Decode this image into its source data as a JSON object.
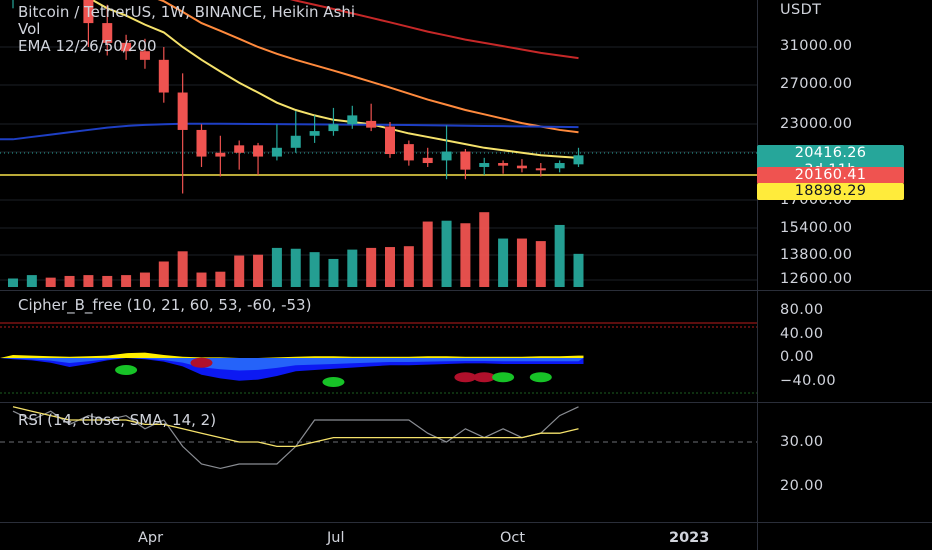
{
  "header": {
    "title": "Bitcoin / TetherUS, 1W, BINANCE, Heikin Ashi",
    "vol_label": "Vol",
    "ema_label": "EMA 12/26/50/200"
  },
  "price_axis": {
    "currency": "USDT",
    "ticks": [
      "31000.00",
      "27000.00",
      "23000.00",
      "17000.00",
      "15400.00",
      "13800.00",
      "12600.00"
    ]
  },
  "price_tags": {
    "last_price": "20416.26",
    "countdown": "3d 11h",
    "level_1": "20160.41",
    "level_2": "18898.29"
  },
  "cipher": {
    "label": "Cipher_B_free (10, 21, 60, 53, -60, -53)",
    "ticks": [
      "80.00",
      "40.00",
      "0.00",
      "−40.00"
    ]
  },
  "rsi": {
    "label": "RSI (14, close, SMA, 14, 2)",
    "ticks": [
      "30.00",
      "20.00"
    ]
  },
  "time_axis": {
    "labels": [
      "Apr",
      "Jul",
      "Oct",
      "2023"
    ]
  },
  "colors": {
    "up": "#26a69a",
    "down": "#ef5350",
    "ema_yellow": "#f5e26b",
    "ema_orange": "#ff8a3d",
    "ema_red": "#c62828",
    "ema_blue": "#1e3fc4",
    "level_line": "#f7e34b",
    "last_tag": "#26a69a",
    "level_1_tag": "#ef5350",
    "level_2_tag": "#ffeb3b"
  },
  "chart_data": {
    "type": "candlestick",
    "title": "Bitcoin / TetherUS, 1W, BINANCE, Heikin Ashi",
    "price_scale": "log",
    "price_range": [
      12000,
      33000
    ],
    "horizontal_level": 20160.41,
    "candles": [
      {
        "o": 37500,
        "h": 40500,
        "l": 36000,
        "c": 39000,
        "d": "up"
      },
      {
        "o": 39500,
        "h": 45000,
        "l": 38500,
        "c": 44000,
        "d": "up"
      },
      {
        "o": 44500,
        "h": 46500,
        "l": 41000,
        "c": 42000,
        "d": "down"
      },
      {
        "o": 42000,
        "h": 43500,
        "l": 37500,
        "c": 38500,
        "d": "down"
      },
      {
        "o": 38500,
        "h": 39500,
        "l": 31000,
        "c": 34000,
        "d": "down"
      },
      {
        "o": 34000,
        "h": 36500,
        "l": 30000,
        "c": 31500,
        "d": "down"
      },
      {
        "o": 31500,
        "h": 32500,
        "l": 29500,
        "c": 30500,
        "d": "down"
      },
      {
        "o": 30500,
        "h": 32000,
        "l": 28500,
        "c": 29500,
        "d": "down"
      },
      {
        "o": 29500,
        "h": 31000,
        "l": 25000,
        "c": 26000,
        "d": "down"
      },
      {
        "o": 26000,
        "h": 28000,
        "l": 17600,
        "c": 22500,
        "d": "down"
      },
      {
        "o": 22500,
        "h": 23000,
        "l": 19500,
        "c": 20300,
        "d": "down"
      },
      {
        "o": 20300,
        "h": 22000,
        "l": 18800,
        "c": 20600,
        "d": "down"
      },
      {
        "o": 20600,
        "h": 21600,
        "l": 19300,
        "c": 21200,
        "d": "down"
      },
      {
        "o": 21200,
        "h": 21400,
        "l": 18900,
        "c": 20300,
        "d": "down"
      },
      {
        "o": 20300,
        "h": 23000,
        "l": 20000,
        "c": 21000,
        "d": "up"
      },
      {
        "o": 21000,
        "h": 24200,
        "l": 20600,
        "c": 22000,
        "d": "up"
      },
      {
        "o": 22000,
        "h": 23800,
        "l": 21400,
        "c": 22400,
        "d": "up"
      },
      {
        "o": 22400,
        "h": 24500,
        "l": 22000,
        "c": 23000,
        "d": "up"
      },
      {
        "o": 23000,
        "h": 24700,
        "l": 22600,
        "c": 23800,
        "d": "up"
      },
      {
        "o": 23300,
        "h": 24900,
        "l": 22400,
        "c": 22700,
        "d": "down"
      },
      {
        "o": 22800,
        "h": 23200,
        "l": 20200,
        "c": 20500,
        "d": "down"
      },
      {
        "o": 21300,
        "h": 21600,
        "l": 19600,
        "c": 20000,
        "d": "down"
      },
      {
        "o": 20200,
        "h": 21000,
        "l": 19500,
        "c": 19800,
        "d": "down"
      },
      {
        "o": 20000,
        "h": 22900,
        "l": 18600,
        "c": 20700,
        "d": "up"
      },
      {
        "o": 20700,
        "h": 20900,
        "l": 18600,
        "c": 19300,
        "d": "down"
      },
      {
        "o": 19500,
        "h": 20200,
        "l": 18900,
        "c": 19800,
        "d": "up"
      },
      {
        "o": 19800,
        "h": 20000,
        "l": 19000,
        "c": 19600,
        "d": "down"
      },
      {
        "o": 19600,
        "h": 20100,
        "l": 19100,
        "c": 19400,
        "d": "down"
      },
      {
        "o": 19400,
        "h": 19800,
        "l": 18800,
        "c": 19400,
        "d": "down"
      },
      {
        "o": 19400,
        "h": 20000,
        "l": 19100,
        "c": 19800,
        "d": "up"
      },
      {
        "o": 19700,
        "h": 21000,
        "l": 19500,
        "c": 20400,
        "d": "up"
      }
    ],
    "volume": [
      {
        "v": 0.1,
        "d": "up"
      },
      {
        "v": 0.14,
        "d": "up"
      },
      {
        "v": 0.11,
        "d": "down"
      },
      {
        "v": 0.13,
        "d": "down"
      },
      {
        "v": 0.14,
        "d": "down"
      },
      {
        "v": 0.13,
        "d": "down"
      },
      {
        "v": 0.14,
        "d": "down"
      },
      {
        "v": 0.17,
        "d": "down"
      },
      {
        "v": 0.3,
        "d": "down"
      },
      {
        "v": 0.42,
        "d": "down"
      },
      {
        "v": 0.17,
        "d": "down"
      },
      {
        "v": 0.18,
        "d": "down"
      },
      {
        "v": 0.37,
        "d": "down"
      },
      {
        "v": 0.38,
        "d": "down"
      },
      {
        "v": 0.46,
        "d": "up"
      },
      {
        "v": 0.45,
        "d": "up"
      },
      {
        "v": 0.41,
        "d": "up"
      },
      {
        "v": 0.33,
        "d": "up"
      },
      {
        "v": 0.44,
        "d": "up"
      },
      {
        "v": 0.46,
        "d": "down"
      },
      {
        "v": 0.47,
        "d": "down"
      },
      {
        "v": 0.48,
        "d": "down"
      },
      {
        "v": 0.77,
        "d": "down"
      },
      {
        "v": 0.78,
        "d": "up"
      },
      {
        "v": 0.75,
        "d": "down"
      },
      {
        "v": 0.88,
        "d": "down"
      },
      {
        "v": 0.57,
        "d": "up"
      },
      {
        "v": 0.57,
        "d": "down"
      },
      {
        "v": 0.54,
        "d": "down"
      },
      {
        "v": 0.73,
        "d": "up"
      },
      {
        "v": 0.39,
        "d": "up"
      }
    ],
    "ema": [
      {
        "name": "EMA 12",
        "color": "#f5e26b",
        "values": [
          41000,
          40000,
          39500,
          38500,
          37500,
          36000,
          35000,
          33800,
          32800,
          31000,
          29500,
          28200,
          27000,
          26000,
          25000,
          24300,
          23800,
          23400,
          23200,
          23000,
          22600,
          22200,
          21900,
          21600,
          21300,
          21000,
          20800,
          20600,
          20400,
          20300,
          20200
        ]
      },
      {
        "name": "EMA 26",
        "color": "#ff8a3d",
        "values": [
          44000,
          43200,
          42600,
          42000,
          41000,
          40000,
          39000,
          38000,
          37000,
          35500,
          34000,
          33000,
          32000,
          31000,
          30200,
          29500,
          28900,
          28300,
          27700,
          27100,
          26500,
          25900,
          25300,
          24800,
          24300,
          23900,
          23500,
          23100,
          22800,
          22500,
          22300
        ]
      },
      {
        "name": "EMA 50",
        "color": "#c62828",
        "values": [
          47000,
          46700,
          46400,
          46000,
          45500,
          45000,
          44300,
          43600,
          42900,
          42000,
          41000,
          40200,
          39400,
          38600,
          37800,
          37100,
          36500,
          35900,
          35300,
          34700,
          34100,
          33500,
          32900,
          32400,
          31900,
          31500,
          31100,
          30700,
          30300,
          30000,
          29700
        ]
      },
      {
        "name": "EMA 200",
        "color": "#1e3fc4",
        "values": [
          21700,
          21900,
          22100,
          22300,
          22500,
          22700,
          22850,
          22950,
          23000,
          23050,
          23050,
          23040,
          23030,
          23020,
          23010,
          23000,
          22990,
          22980,
          22970,
          22960,
          22950,
          22930,
          22910,
          22890,
          22870,
          22850,
          22830,
          22810,
          22790,
          22770,
          22750
        ]
      }
    ],
    "cipher_b": {
      "range": [
        -60,
        80
      ],
      "wave": [
        -2,
        -4,
        -8,
        -15,
        -10,
        -4,
        0,
        -2,
        -6,
        -14,
        -28,
        -34,
        -38,
        -36,
        -30,
        -22,
        -20,
        -18,
        -16,
        -14,
        -12,
        -12,
        -11,
        -10,
        -9,
        -9,
        -10,
        -10,
        -10,
        -10,
        -10
      ],
      "money_flow": [
        5,
        4,
        3,
        2,
        3,
        4,
        8,
        9,
        5,
        2,
        1,
        1,
        0,
        0,
        1,
        2,
        3,
        3,
        2,
        2,
        2,
        2,
        3,
        3,
        2,
        2,
        2,
        2,
        3,
        3,
        4
      ],
      "dots": [
        {
          "i": 6,
          "v": -20,
          "color": "green"
        },
        {
          "i": 10,
          "v": -8,
          "color": "red"
        },
        {
          "i": 17,
          "v": -40,
          "color": "green"
        },
        {
          "i": 24,
          "v": -32,
          "color": "red"
        },
        {
          "i": 25,
          "v": -32,
          "color": "red"
        },
        {
          "i": 26,
          "v": -32,
          "color": "green"
        },
        {
          "i": 28,
          "v": -32,
          "color": "green"
        }
      ]
    },
    "rsi": {
      "range": [
        15,
        40
      ],
      "values": [
        37,
        35,
        37,
        34,
        36,
        35,
        36,
        33,
        35,
        29,
        25,
        24,
        25,
        25,
        25,
        29,
        35,
        35,
        35,
        35,
        35,
        35,
        32,
        30,
        33,
        31,
        33,
        31,
        32,
        36,
        38
      ],
      "sma": [
        38,
        37,
        36,
        35,
        35,
        35,
        35,
        34,
        34,
        33,
        32,
        31,
        30,
        30,
        29,
        29,
        30,
        31,
        31,
        31,
        31,
        31,
        31,
        31,
        31,
        31,
        31,
        31,
        32,
        32,
        33
      ]
    }
  }
}
